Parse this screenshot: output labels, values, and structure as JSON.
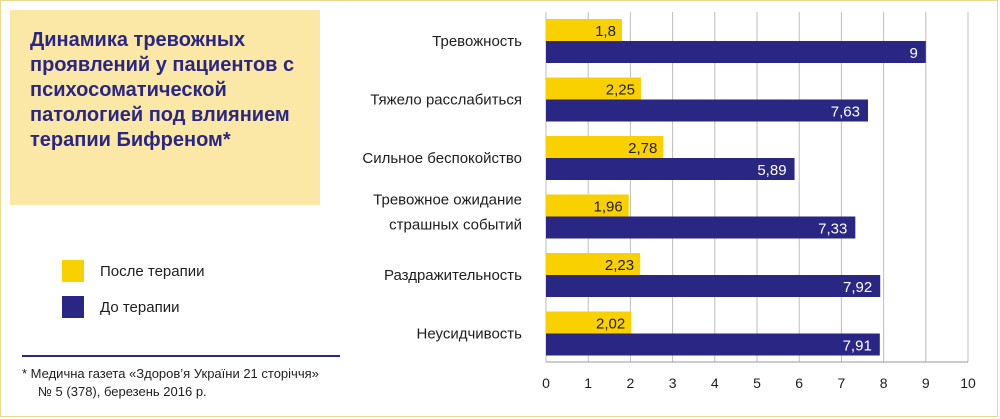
{
  "title": "Динамика тревожных проявлений у пациентов с психосоматической патологией под влиянием терапии Бифреном*",
  "legend": {
    "after": "После терапии",
    "before": "До терапии"
  },
  "footnote": {
    "line1": "* Медична газета «Здоров’я України 21 сторіччя»",
    "line2": "№ 5 (378), березень 2016 р."
  },
  "colors": {
    "after": "#f9d000",
    "before": "#2a2683",
    "title": "#2a2683",
    "title_bg": "#fce8a6"
  },
  "chart_data": {
    "type": "bar",
    "orientation": "horizontal",
    "categories": [
      [
        "Тревожность"
      ],
      [
        "Тяжело расслабиться"
      ],
      [
        "Сильное беспокойство"
      ],
      [
        "Тревожное ожидание",
        "страшных событий"
      ],
      [
        "Раздражительность"
      ],
      [
        "Неусидчивость"
      ]
    ],
    "series": [
      {
        "name": "После терапии",
        "values": [
          1.8,
          2.25,
          2.78,
          1.96,
          2.23,
          2.02
        ],
        "labels": [
          "1,8",
          "2,25",
          "2,78",
          "1,96",
          "2,23",
          "2,02"
        ]
      },
      {
        "name": "До терапии",
        "values": [
          9,
          7.63,
          5.89,
          7.33,
          7.92,
          7.91
        ],
        "labels": [
          "9",
          "7,63",
          "5,89",
          "7,33",
          "7,92",
          "7,91"
        ]
      }
    ],
    "xlim": [
      0,
      10
    ],
    "ticks": [
      0,
      1,
      2,
      3,
      4,
      5,
      6,
      7,
      8,
      9,
      10
    ],
    "grid": true,
    "legend_position": "left"
  }
}
